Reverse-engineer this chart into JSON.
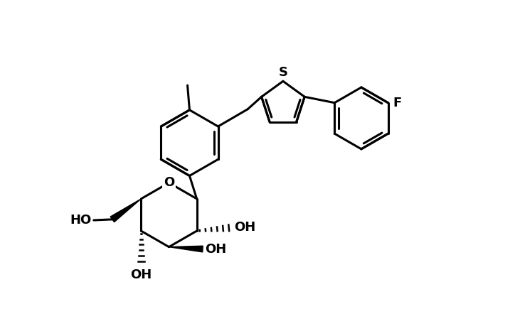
{
  "background_color": "#ffffff",
  "line_color": "#000000",
  "line_width": 2.2,
  "font_size": 13,
  "figsize": [
    7.24,
    4.66
  ],
  "dpi": 100,
  "xlim": [
    0,
    10
  ],
  "ylim": [
    0,
    8
  ]
}
